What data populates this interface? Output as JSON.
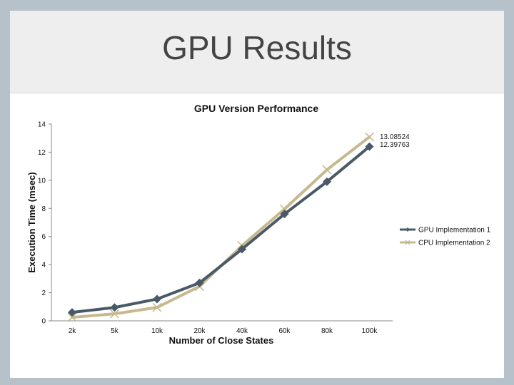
{
  "slide": {
    "title": "GPU Results"
  },
  "chart_data": {
    "type": "line",
    "title": "GPU Version Performance",
    "xlabel": "Number of Close States",
    "ylabel": "Execution Time (msec)",
    "categories": [
      "2k",
      "5k",
      "10k",
      "20k",
      "40k",
      "60k",
      "80k",
      "100k"
    ],
    "ylim": [
      0,
      14
    ],
    "yticks": [
      0,
      2,
      4,
      6,
      8,
      10,
      12,
      14
    ],
    "grid": false,
    "legend": "right",
    "series": [
      {
        "name": "GPU Implementation 1",
        "values": [
          0.6,
          0.95,
          1.55,
          2.7,
          5.1,
          7.6,
          9.9,
          12.39763
        ],
        "color": "#4a5968",
        "marker": "diamond"
      },
      {
        "name": "CPU Implementation 2",
        "values": [
          0.25,
          0.5,
          0.95,
          2.45,
          5.35,
          7.95,
          10.75,
          13.08524
        ],
        "color": "#c7b98e",
        "marker": "x"
      }
    ],
    "annotations": [
      "13.08524",
      "12.39763"
    ]
  }
}
